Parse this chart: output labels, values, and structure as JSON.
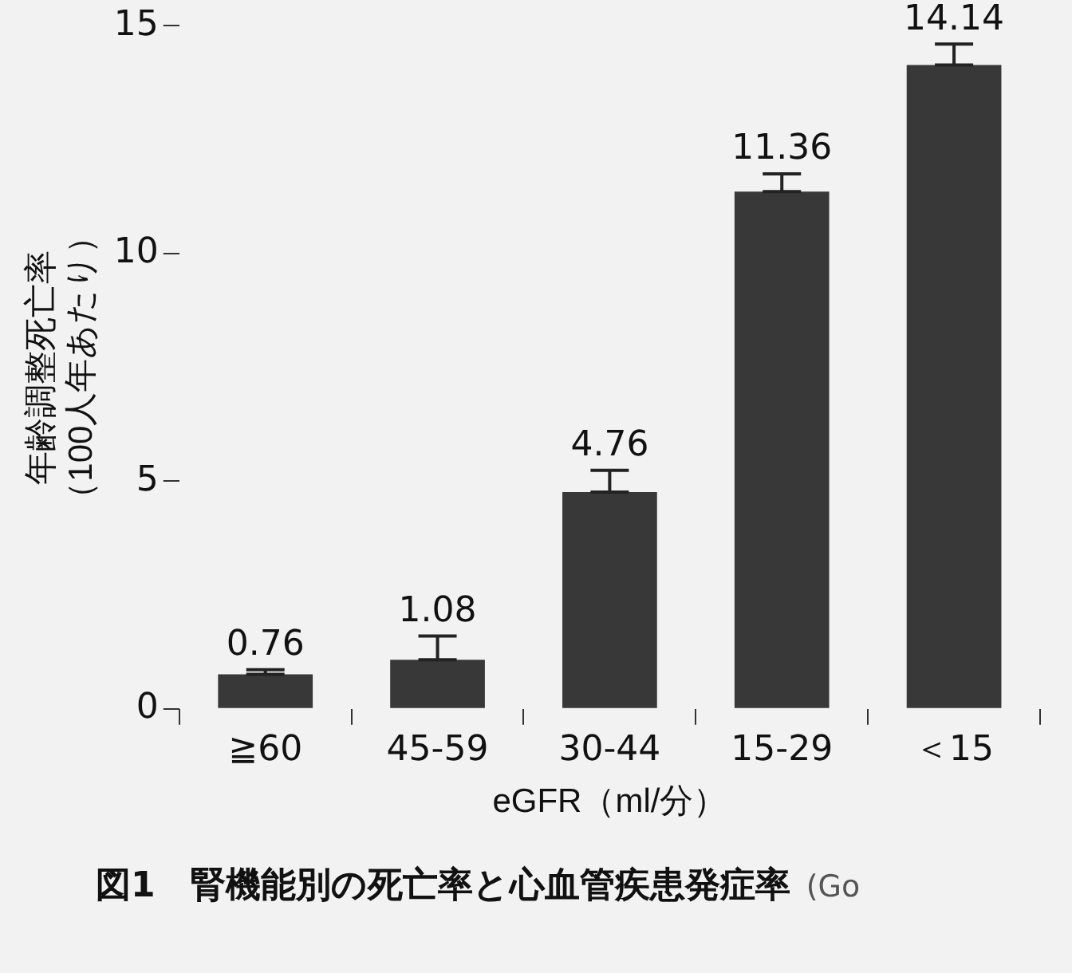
{
  "chart_data": {
    "type": "bar",
    "title": "図1　腎機能別の死亡率と心血管疾患発症率",
    "xlabel": "eGFR（ml/分）",
    "ylabel": "年齢調整死亡率（100人年あたり）",
    "categories": [
      "≧60",
      "45-59",
      "30-44",
      "15-29",
      "＜15"
    ],
    "values": [
      0.76,
      1.08,
      4.76,
      11.36,
      14.14
    ],
    "errors": [
      [
        0.76,
        0.86
      ],
      [
        1.08,
        1.6
      ],
      [
        4.76,
        5.24
      ],
      [
        11.36,
        11.75
      ],
      [
        14.14,
        14.6
      ]
    ],
    "color": "#383838",
    "data_labels": true,
    "ylim": [
      0,
      15
    ],
    "yticks": [
      0,
      5,
      10,
      15
    ],
    "grid": false,
    "legend": false,
    "annotations": [
      "(Go"
    ]
  }
}
